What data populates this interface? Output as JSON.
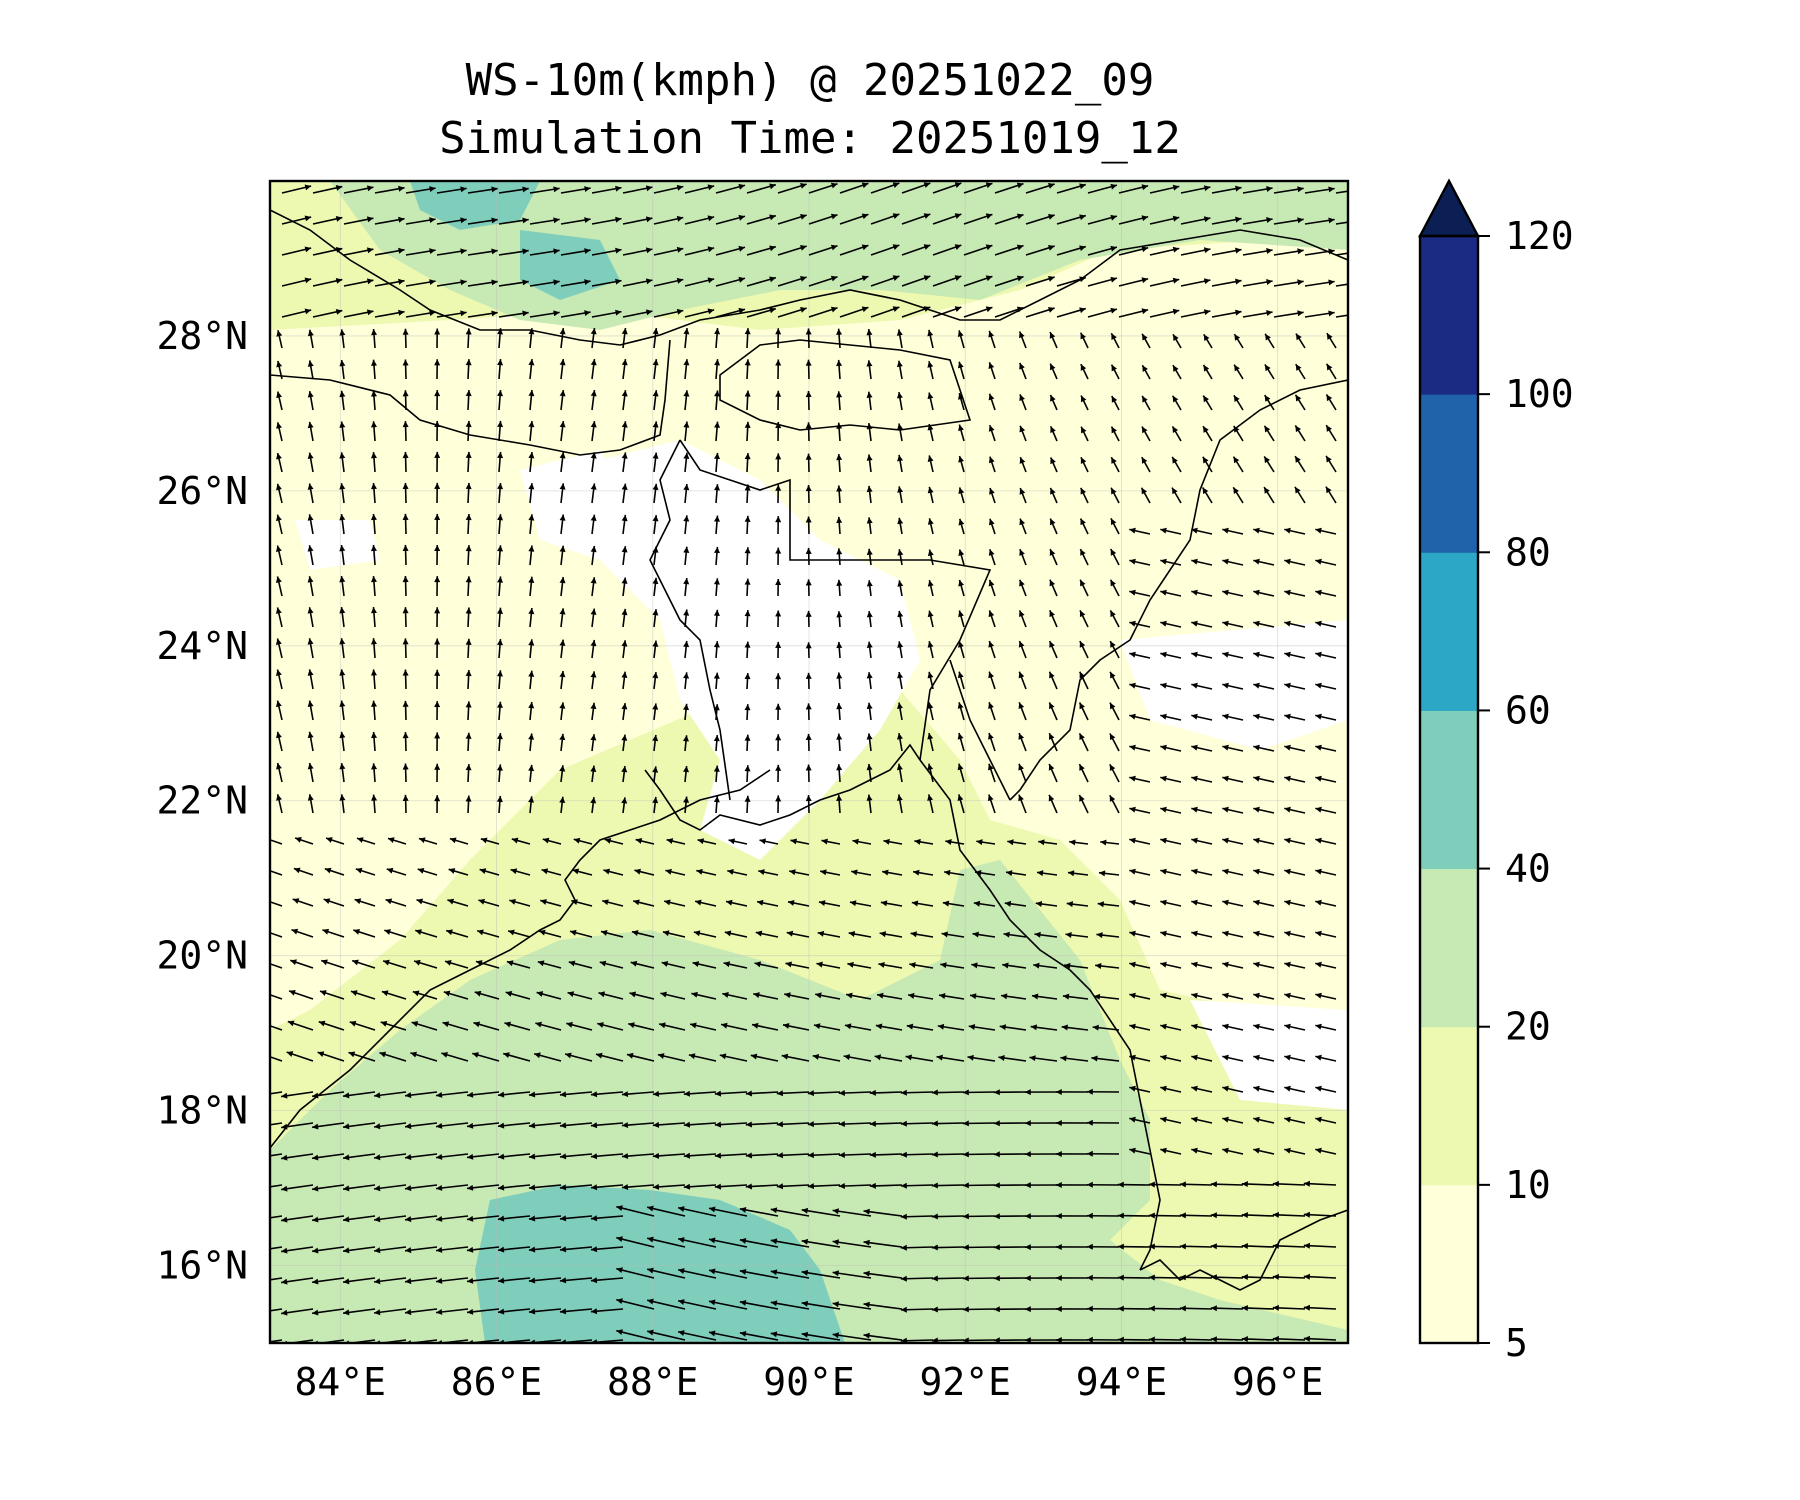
{
  "title": {
    "line1": "WS-10m(kmph) @ 20251022_09",
    "line2": "Simulation Time: 20251019_12"
  },
  "map": {
    "lon_range": [
      83.1,
      96.9
    ],
    "lat_range": [
      15.0,
      30.0
    ],
    "lat_ticks": [
      {
        "value": 16,
        "label": "16°N"
      },
      {
        "value": 18,
        "label": "18°N"
      },
      {
        "value": 20,
        "label": "20°N"
      },
      {
        "value": 22,
        "label": "22°N"
      },
      {
        "value": 24,
        "label": "24°N"
      },
      {
        "value": 26,
        "label": "26°N"
      },
      {
        "value": 28,
        "label": "28°N"
      }
    ],
    "lon_ticks": [
      {
        "value": 84,
        "label": "84°E"
      },
      {
        "value": 86,
        "label": "86°E"
      },
      {
        "value": 88,
        "label": "88°E"
      },
      {
        "value": 90,
        "label": "90°E"
      },
      {
        "value": 92,
        "label": "92°E"
      },
      {
        "value": 94,
        "label": "94°E"
      },
      {
        "value": 96,
        "label": "96°E"
      }
    ],
    "gridlines": true
  },
  "colorbar": {
    "levels": [
      5,
      10,
      20,
      40,
      60,
      80,
      100,
      120
    ],
    "labels": [
      "5",
      "10",
      "20",
      "40",
      "60",
      "80",
      "100",
      "120"
    ],
    "colors": [
      "#ffffd9",
      "#edf8b1",
      "#c7e9b4",
      "#7fcdbb",
      "#2ca7c5",
      "#2163aa",
      "#1b2b83"
    ],
    "extend_color": "#0b1f55",
    "extend": "max"
  },
  "fill_colors": {
    "calm": "#ffffff",
    "band_5_10": "#ffffd9",
    "band_10_20": "#edf8b1",
    "band_20_40": "#c7e9b4",
    "band_40_60": "#7fcdbb",
    "coast": "#000000",
    "arrow": "#000000"
  }
}
